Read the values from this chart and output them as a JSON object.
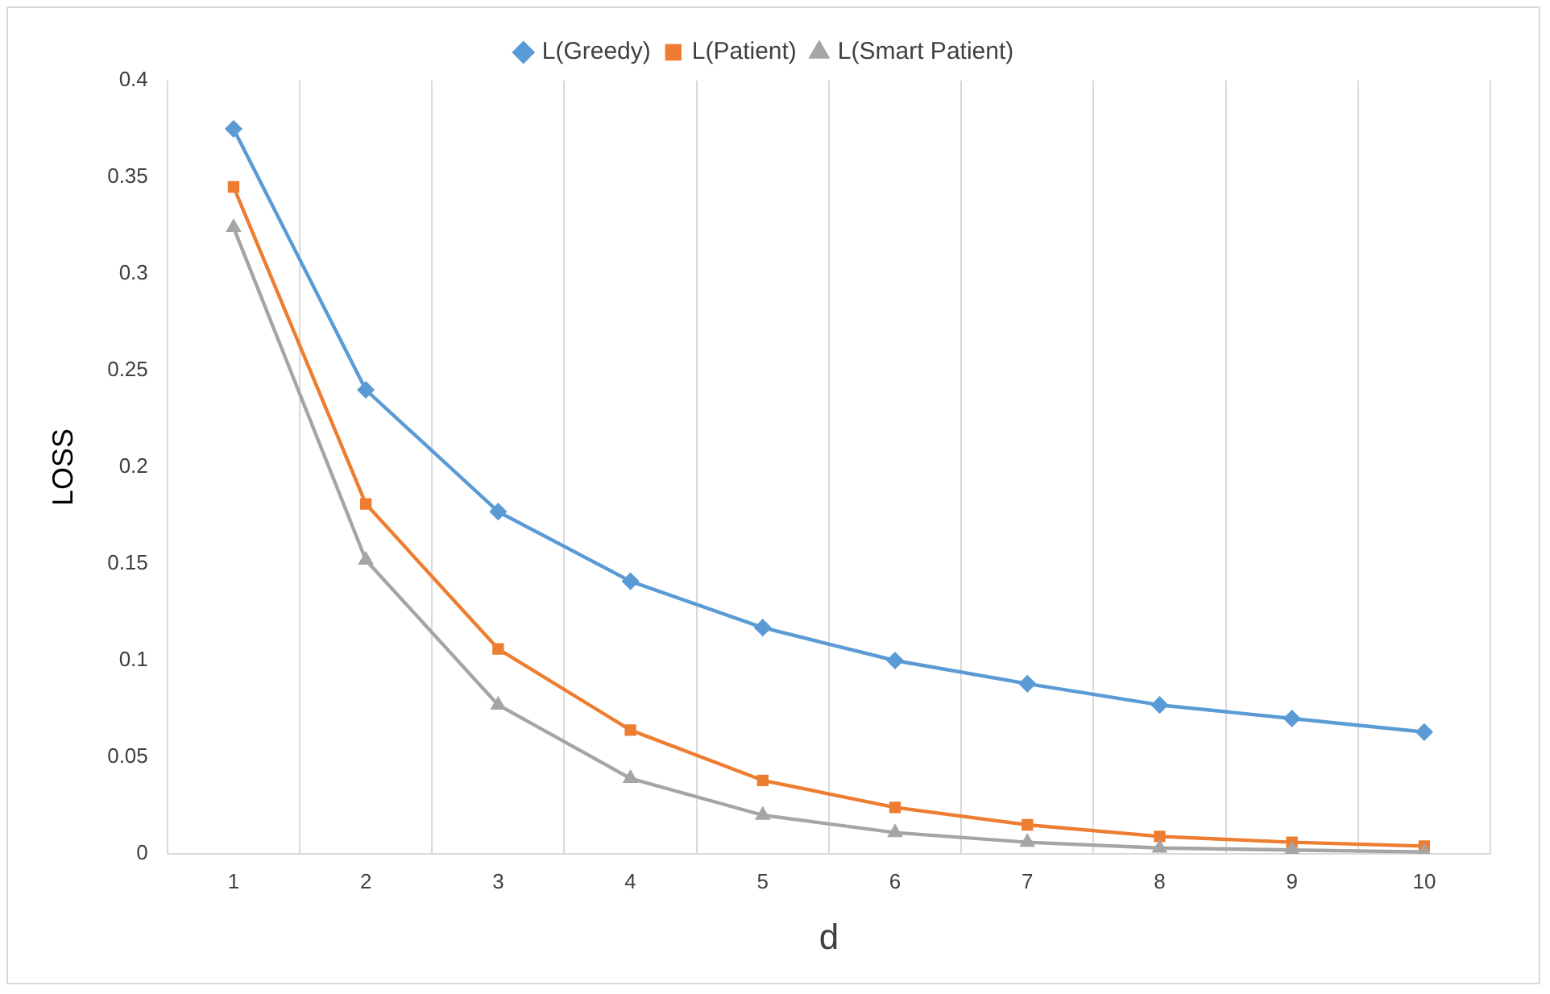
{
  "chart_data": {
    "type": "line",
    "xlabel": "d",
    "ylabel": "LOSS",
    "categories": [
      "1",
      "2",
      "3",
      "4",
      "5",
      "6",
      "7",
      "8",
      "9",
      "10"
    ],
    "series": [
      {
        "name": "L(Greedy)",
        "color": "#5b9bd5",
        "marker": "diamond",
        "values": [
          0.375,
          0.24,
          0.177,
          0.141,
          0.117,
          0.1,
          0.088,
          0.077,
          0.07,
          0.063
        ]
      },
      {
        "name": "L(Patient)",
        "color": "#ed7d31",
        "marker": "square",
        "values": [
          0.345,
          0.181,
          0.106,
          0.064,
          0.038,
          0.024,
          0.015,
          0.009,
          0.006,
          0.004
        ]
      },
      {
        "name": "L(Smart Patient)",
        "color": "#a5a5a5",
        "marker": "triangle",
        "values": [
          0.324,
          0.152,
          0.077,
          0.039,
          0.02,
          0.011,
          0.006,
          0.003,
          0.002,
          0.001
        ]
      }
    ],
    "ylim": [
      0,
      0.4
    ],
    "yticks": [
      0,
      0.05,
      0.1,
      0.15,
      0.2,
      0.25,
      0.3,
      0.35,
      0.4
    ],
    "grid": "x",
    "legend": "top"
  }
}
